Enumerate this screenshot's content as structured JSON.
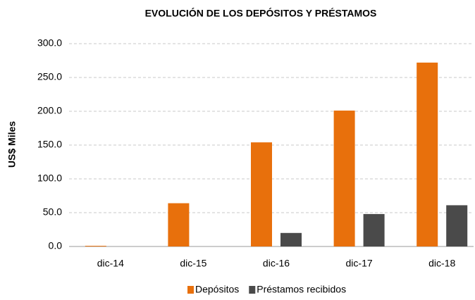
{
  "chart_data": {
    "type": "bar",
    "title": "EVOLUCIÓN DE LOS DEPÓSITOS Y PRÉSTAMOS",
    "y_label": "US$ Miles",
    "categories": [
      "dic-14",
      "dic-15",
      "dic-16",
      "dic-17",
      "dic-18"
    ],
    "series": [
      {
        "name": "Depósitos",
        "color": "#e8700c",
        "values": [
          1,
          64,
          154,
          201,
          272
        ]
      },
      {
        "name": "Préstamos recibidos",
        "color": "#4a4a4a",
        "values": [
          0,
          0,
          20,
          48,
          61
        ]
      }
    ],
    "ylim": [
      0,
      300
    ],
    "yticks": [
      {
        "value": 0,
        "label": "0.0"
      },
      {
        "value": 50,
        "label": "50.0"
      },
      {
        "value": 100,
        "label": "100.0"
      },
      {
        "value": 150,
        "label": "150.0"
      },
      {
        "value": 200,
        "label": "200.0"
      },
      {
        "value": 250,
        "label": "250.0"
      },
      {
        "value": 300,
        "label": "300.0"
      }
    ],
    "grid": true,
    "legend": "bottom"
  }
}
